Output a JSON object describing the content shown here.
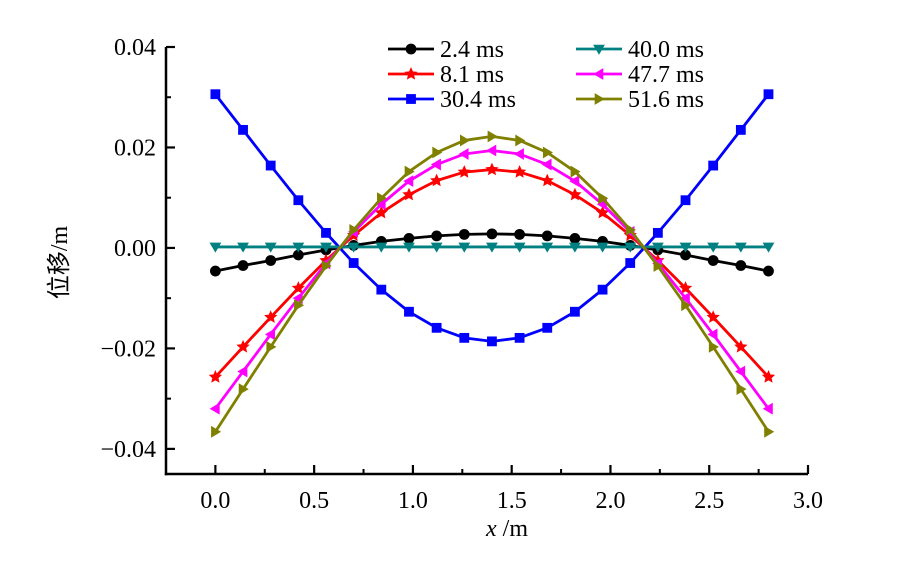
{
  "chart_data": {
    "type": "line",
    "title": "",
    "xlabel": "x /m",
    "xlabel_italic_part": "x",
    "xlabel_rest": " /m",
    "ylabel": "位移/m",
    "xlim": [
      -0.25,
      3.0
    ],
    "ylim": [
      -0.045,
      0.04
    ],
    "xticks": [
      0.0,
      0.5,
      1.0,
      1.5,
      2.0,
      2.5,
      3.0
    ],
    "xtick_labels": [
      "0.0",
      "0.5",
      "1.0",
      "1.5",
      "2.0",
      "2.5",
      "3.0"
    ],
    "yticks": [
      -0.04,
      -0.02,
      0.0,
      0.02,
      0.04
    ],
    "ytick_labels": [
      "−0.04",
      "−0.02",
      "0.00",
      "0.02",
      "0.04"
    ],
    "grid": false,
    "legend_position": "top-center",
    "x": [
      0.0,
      0.14,
      0.28,
      0.42,
      0.56,
      0.7,
      0.84,
      0.98,
      1.12,
      1.26,
      1.4,
      1.54,
      1.68,
      1.82,
      1.96,
      2.1,
      2.24,
      2.38,
      2.52,
      2.66,
      2.8
    ],
    "series": [
      {
        "name": "2.4 ms",
        "color": "#000000",
        "marker": "circle",
        "values": [
          -0.0046,
          -0.0035,
          -0.0025,
          -0.0014,
          -0.0004,
          0.0005,
          0.0013,
          0.0019,
          0.0024,
          0.0027,
          0.0028,
          0.0027,
          0.0024,
          0.0019,
          0.0013,
          0.0005,
          -0.0004,
          -0.0014,
          -0.0025,
          -0.0035,
          -0.0046
        ]
      },
      {
        "name": "8.1 ms",
        "color": "#ff0000",
        "marker": "star",
        "values": [
          -0.0257,
          -0.0197,
          -0.0138,
          -0.008,
          -0.0025,
          0.0025,
          0.007,
          0.0106,
          0.0134,
          0.0151,
          0.0156,
          0.0151,
          0.0134,
          0.0106,
          0.007,
          0.0025,
          -0.0025,
          -0.008,
          -0.0138,
          -0.0197,
          -0.0257
        ]
      },
      {
        "name": "30.4 ms",
        "color": "#0000ff",
        "marker": "square",
        "values": [
          0.0306,
          0.0235,
          0.0164,
          0.0095,
          0.003,
          -0.003,
          -0.0083,
          -0.0127,
          -0.0159,
          -0.0179,
          -0.0186,
          -0.0179,
          -0.0159,
          -0.0127,
          -0.0083,
          -0.003,
          0.003,
          0.0095,
          0.0164,
          0.0235,
          0.0306
        ]
      },
      {
        "name": "40.0 ms",
        "color": "#008080",
        "marker": "triangle-down",
        "values": [
          0.0002,
          0.0002,
          0.0002,
          0.0002,
          0.0002,
          0.0002,
          0.0002,
          0.0002,
          0.0002,
          0.0002,
          0.0002,
          0.0002,
          0.0002,
          0.0002,
          0.0002,
          0.0002,
          0.0002,
          0.0002,
          0.0002,
          0.0002,
          0.0002
        ]
      },
      {
        "name": "47.7 ms",
        "color": "#ff00ff",
        "marker": "triangle-left",
        "values": [
          -0.032,
          -0.0246,
          -0.0172,
          -0.01,
          -0.0031,
          0.0032,
          0.0087,
          0.0133,
          0.0166,
          0.0187,
          0.0194,
          0.0187,
          0.0166,
          0.0133,
          0.0087,
          0.0032,
          -0.0031,
          -0.01,
          -0.0172,
          -0.0246,
          -0.032
        ]
      },
      {
        "name": "51.6 ms",
        "color": "#808000",
        "marker": "triangle-right",
        "values": [
          -0.0366,
          -0.0281,
          -0.0197,
          -0.0114,
          -0.0036,
          0.0036,
          0.0099,
          0.0152,
          0.019,
          0.0214,
          0.0222,
          0.0214,
          0.019,
          0.0152,
          0.0099,
          0.0036,
          -0.0036,
          -0.0114,
          -0.0197,
          -0.0281,
          -0.0366
        ]
      }
    ]
  }
}
